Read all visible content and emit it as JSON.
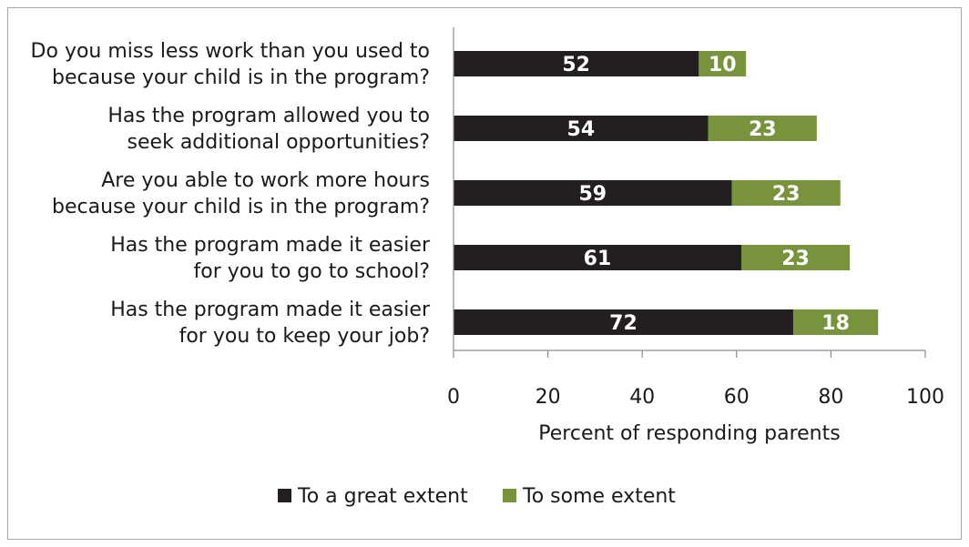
{
  "chart_data": {
    "type": "bar",
    "orientation": "horizontal",
    "stacked": true,
    "categories": [
      [
        "Do you miss less work than you used to",
        "because your child is in the program?"
      ],
      [
        "Has the program allowed you to",
        "seek additional opportunities?"
      ],
      [
        "Are you able to work more hours",
        "because your child is in the program?"
      ],
      [
        "Has the program made it easier",
        "for you to go to school?"
      ],
      [
        "Has the program made it easier",
        "for you to keep your job?"
      ]
    ],
    "series": [
      {
        "name": "To a great extent",
        "color": "#231f20",
        "values": [
          52,
          54,
          59,
          61,
          72
        ]
      },
      {
        "name": "To some extent",
        "color": "#77933c",
        "values": [
          10,
          23,
          23,
          23,
          18
        ]
      }
    ],
    "xlabel": "Percent of responding  parents",
    "ylabel": "",
    "xlim": [
      0,
      100
    ],
    "xticks": [
      0,
      20,
      40,
      60,
      80,
      100
    ],
    "grid": false,
    "legend_position": "bottom"
  }
}
